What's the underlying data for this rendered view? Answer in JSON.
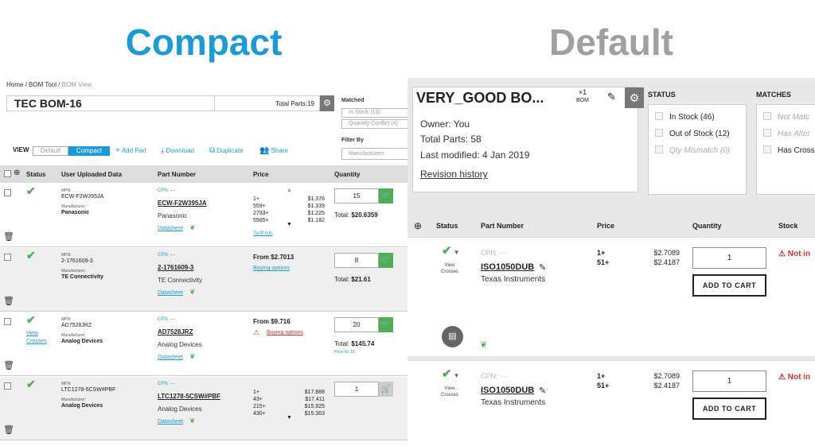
{
  "titles": {
    "compact": "Compact",
    "default": "Default"
  },
  "compact": {
    "breadcrumb": {
      "home": "Home",
      "tool": "BOM Tool",
      "current": "BOM View"
    },
    "bom_name": "TEC BOM-16",
    "total_parts": "Total Parts:19",
    "matched_label": "Matched",
    "chips": [
      "In Stock (13)",
      "Quantity Conflict (4)"
    ],
    "filter_label": "Filter By",
    "filter_placeholder": "Manufacturers",
    "view_label": "VIEW",
    "toggle": {
      "default": "Default",
      "compact": "Compact"
    },
    "actions": {
      "add": "Add Part",
      "download": "Download",
      "duplicate": "Duplicate",
      "share": "Share"
    },
    "headers": {
      "status": "Status",
      "uploaded": "User Uploaded Data",
      "part": "Part Number",
      "price": "Price",
      "quantity": "Quantity"
    },
    "labels": {
      "mpn": "MPN:",
      "manufacturer": "Manufacturer:",
      "cpn": "CPN:",
      "cpn_value": "- -",
      "datasheet": "Datasheet",
      "total": "Total:",
      "view_crosses": "View Crosses"
    },
    "rows": [
      {
        "mpn": "ECW-F2W395JA",
        "mfr": "Panasonic",
        "part": "ECW-F2W395JA",
        "part_mfr": "Panasonic",
        "qtys": "1+\n559+\n2793+\n5585+",
        "prices": "$1.376\n$1.339\n$1.225\n$1.182",
        "tariff": "Tariff Info",
        "qty": "15",
        "total": "$20.6359"
      },
      {
        "mpn": "2-1761609-3",
        "mfr": "TE Connectivity",
        "part": "2-1761609-3",
        "part_mfr": "TE Connectivity",
        "from": "From $2.7013",
        "buy": "Buying options",
        "qty": "8",
        "total": "$21.61"
      },
      {
        "mpn": "AD7528JRZ",
        "mfr": "Analog Devices",
        "part": "AD7528JRZ",
        "part_mfr": "Analog Devices",
        "from": "From $9.716",
        "buy": "Buying options",
        "qty": "20",
        "total": "$145.74",
        "price_for": "Price for 15"
      },
      {
        "mpn": "LTC1278-5CSW#PBF",
        "mfr": "Analog Devices",
        "part": "LTC1278-5CSW#PBF",
        "part_mfr": "Analog Devices",
        "qtys": "1+\n43+\n215+\n430+",
        "prices": "$17.888\n$17.411\n$15.925\n$15.363",
        "qty": "1"
      }
    ]
  },
  "default": {
    "bom_name": "VERY_GOOD BO...",
    "bom_count": "×1",
    "bom_count_label": "BOM",
    "owner": "Owner: You",
    "total_parts": "Total Parts: 58",
    "last_modified": "Last modified: 4 Jan 2019",
    "revision": "Revision history",
    "status_label": "STATUS",
    "status_items": [
      "In Stock (46)",
      "Out of Stock (12)",
      "Qty Mismatch (0)"
    ],
    "matches_label": "MATCHES",
    "match_items": [
      "Not Matc",
      "Has Alter",
      "Has Cross"
    ],
    "headers": {
      "status": "Status",
      "part": "Part Number",
      "price": "Price",
      "quantity": "Quantity",
      "stock": "Stock"
    },
    "labels": {
      "cpn": "CPN: - -",
      "view_crosses": "View\nCrosses",
      "add_to_cart": "ADD TO CART",
      "not_in": "⚠ Not in"
    },
    "rows": [
      {
        "part": "ISO1050DUB",
        "mfr": "Texas Instruments",
        "qtys": "1+\n51+",
        "prices": "$2.7089\n$2.4187",
        "qty": "1"
      },
      {
        "part": "ISO1050DUB",
        "mfr": "Texas Instruments",
        "qtys": "1+\n51+",
        "prices": "$2.7089\n$2.4187",
        "qty": "1"
      }
    ]
  }
}
